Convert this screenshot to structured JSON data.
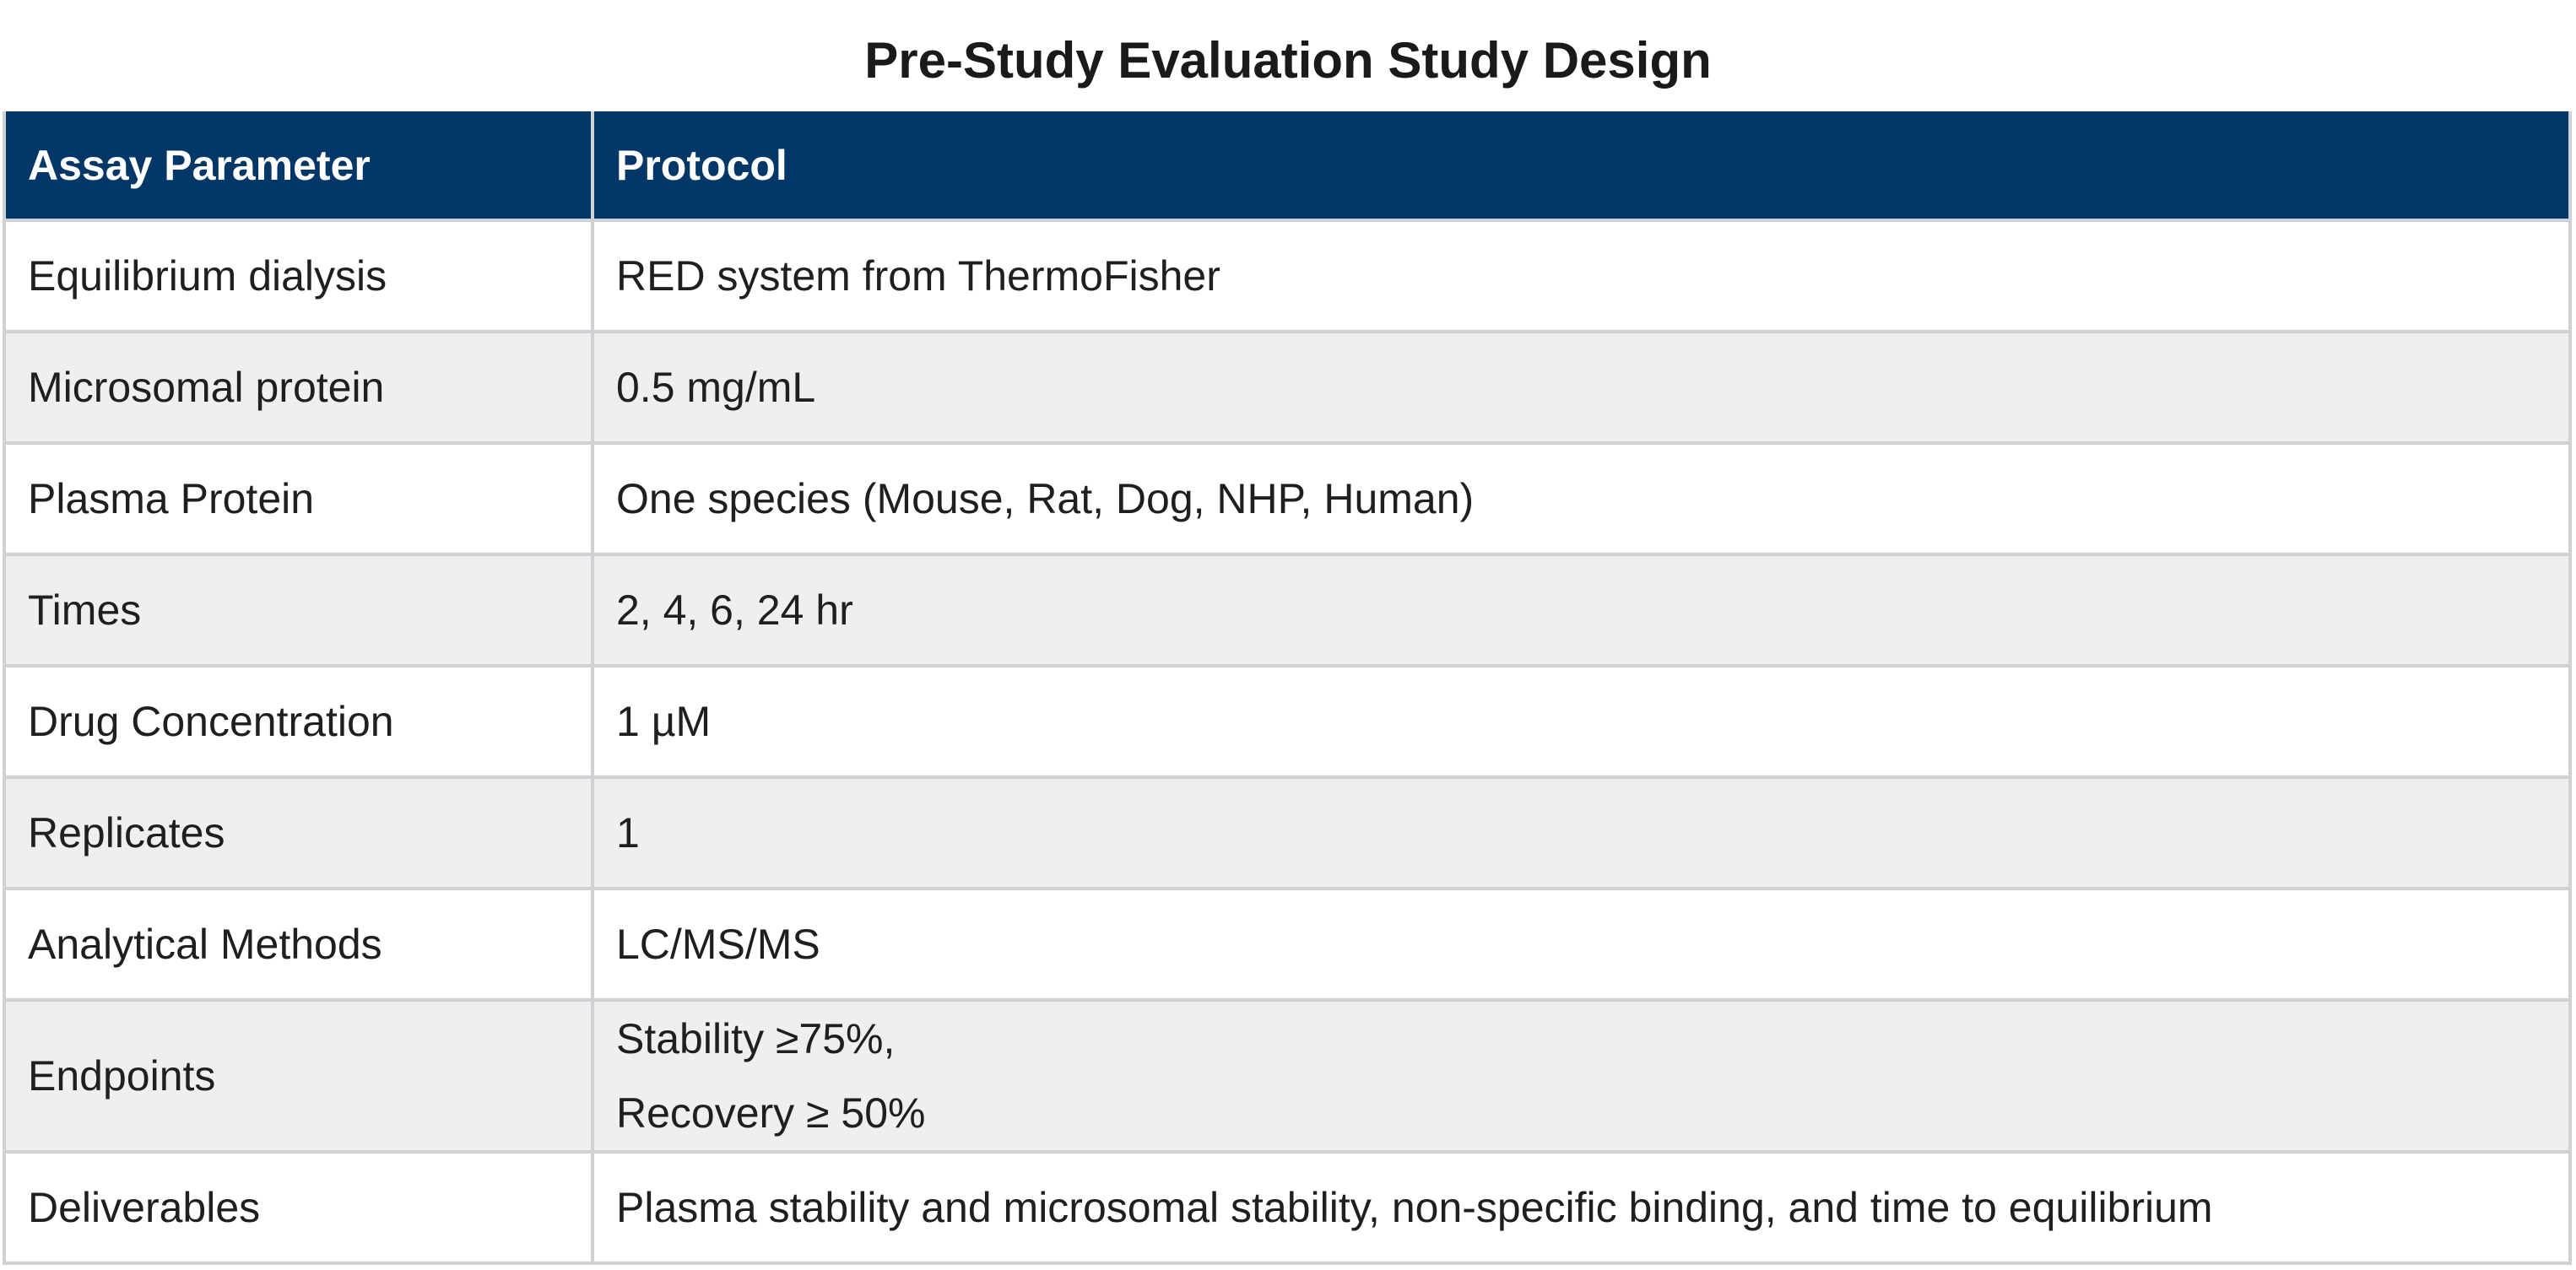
{
  "title": "Pre-Study Evaluation Study Design",
  "table": {
    "headers": [
      "Assay Parameter",
      "Protocol"
    ],
    "rows": [
      {
        "parameter": "Equilibrium dialysis",
        "protocol": [
          "RED system from ThermoFisher"
        ]
      },
      {
        "parameter": "Microsomal protein",
        "protocol": [
          "0.5 mg/mL"
        ]
      },
      {
        "parameter": "Plasma Protein",
        "protocol": [
          "One species (Mouse, Rat, Dog, NHP, Human)"
        ]
      },
      {
        "parameter": "Times",
        "protocol": [
          "2, 4, 6, 24 hr"
        ]
      },
      {
        "parameter": "Drug Concentration",
        "protocol": [
          "1 µM"
        ]
      },
      {
        "parameter": "Replicates",
        "protocol": [
          "1"
        ]
      },
      {
        "parameter": "Analytical Methods",
        "protocol": [
          "LC/MS/MS"
        ]
      },
      {
        "parameter": "Endpoints",
        "protocol": [
          "Stability ≥75%,",
          "Recovery ≥ 50%"
        ]
      },
      {
        "parameter": "Deliverables",
        "protocol": [
          "Plasma stability and microsomal stability, non-specific binding, and time to equilibrium"
        ]
      }
    ]
  },
  "colors": {
    "header_bg": "#033768",
    "alt_row_bg": "#efefef",
    "border": "#d0d1d4"
  }
}
